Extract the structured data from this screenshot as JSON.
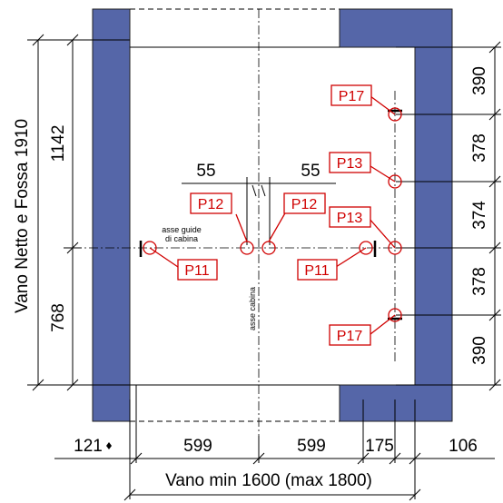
{
  "dimensions": {
    "vertical_total": "Vano Netto e Fossa 1910",
    "upper_left": "1142",
    "lower_left": "768",
    "right_1": "390",
    "right_2": "378",
    "right_3": "374",
    "right_4": "378",
    "right_5": "390",
    "gap_left": "55",
    "gap_right": "55",
    "bottom_121": "121",
    "bottom_599_left": "599",
    "bottom_599_right": "599",
    "bottom_175": "175",
    "bottom_106": "106",
    "vano": "Vano min 1600 (max 1800)"
  },
  "annotations": {
    "asse_guide_line1": "asse guide",
    "asse_guide_line2": "di cabina",
    "asse_cabina": "asse cabina"
  },
  "points": {
    "p17_top": "P17",
    "p13_upper": "P13",
    "p13_lower": "P13",
    "p12_left": "P12",
    "p12_right": "P12",
    "p11_left": "P11",
    "p11_right": "P11",
    "p17_bottom": "P17"
  },
  "colors": {
    "wall": "#5566a8",
    "label": "#d00000"
  }
}
